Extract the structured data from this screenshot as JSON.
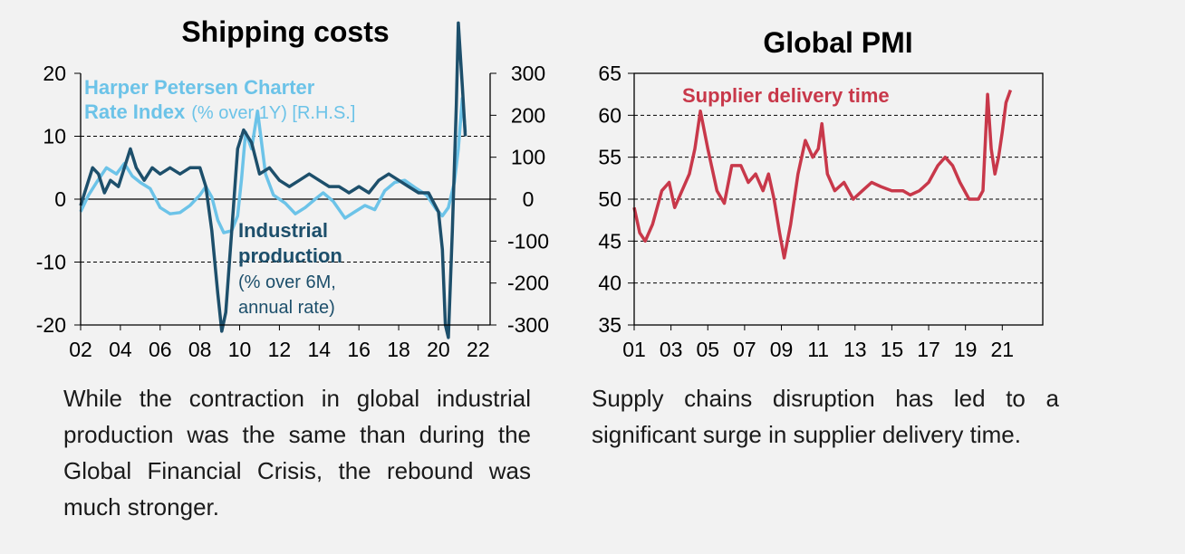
{
  "chart_data": [
    {
      "type": "line",
      "title": "Shipping costs",
      "x_ticks": [
        "02",
        "04",
        "06",
        "08",
        "10",
        "12",
        "14",
        "16",
        "18",
        "20",
        "22"
      ],
      "x_range": [
        2002,
        2022.6
      ],
      "y_left": {
        "range": [
          -20,
          20
        ],
        "ticks": [
          "20",
          "10",
          "0",
          "-10",
          "-20"
        ],
        "tick_values": [
          20,
          10,
          0,
          -10,
          -20
        ]
      },
      "y_right": {
        "range": [
          -300,
          300
        ],
        "ticks": [
          "300",
          "200",
          "100",
          "0",
          "-100",
          "-200",
          "-300"
        ],
        "tick_values": [
          300,
          200,
          100,
          0,
          -100,
          -200,
          -300
        ]
      },
      "gridlines": [
        10,
        0,
        -10
      ],
      "series": [
        {
          "name": "Harper Petersen Charter Rate Index",
          "axis": "right",
          "color": "#6cc3e8",
          "label_bold": "Harper Petersen Charter Rate Index",
          "label_bold_lines": [
            "Harper Petersen Charter",
            "Rate Index"
          ],
          "label_normal": "(% over 1Y) [R.H.S.]",
          "points": [
            [
              2002,
              -30
            ],
            [
              2002.4,
              10
            ],
            [
              2002.8,
              40
            ],
            [
              2003.3,
              75
            ],
            [
              2003.8,
              60
            ],
            [
              2004.2,
              85
            ],
            [
              2004.6,
              55
            ],
            [
              2005,
              40
            ],
            [
              2005.5,
              25
            ],
            [
              2006,
              -20
            ],
            [
              2006.5,
              -35
            ],
            [
              2007,
              -32
            ],
            [
              2007.5,
              -15
            ],
            [
              2008,
              10
            ],
            [
              2008.3,
              30
            ],
            [
              2008.6,
              5
            ],
            [
              2008.9,
              -50
            ],
            [
              2009.2,
              -80
            ],
            [
              2009.6,
              -75
            ],
            [
              2009.9,
              -40
            ],
            [
              2010.1,
              50
            ],
            [
              2010.3,
              160
            ],
            [
              2010.6,
              120
            ],
            [
              2010.9,
              210
            ],
            [
              2011.3,
              60
            ],
            [
              2011.7,
              10
            ],
            [
              2012.3,
              -10
            ],
            [
              2012.8,
              -35
            ],
            [
              2013.3,
              -20
            ],
            [
              2013.8,
              0
            ],
            [
              2014.2,
              15
            ],
            [
              2014.7,
              -5
            ],
            [
              2015.3,
              -45
            ],
            [
              2015.8,
              -30
            ],
            [
              2016.3,
              -15
            ],
            [
              2016.8,
              -25
            ],
            [
              2017.3,
              20
            ],
            [
              2017.8,
              40
            ],
            [
              2018.3,
              45
            ],
            [
              2018.9,
              25
            ],
            [
              2019.4,
              10
            ],
            [
              2019.9,
              -25
            ],
            [
              2020.2,
              -40
            ],
            [
              2020.5,
              -20
            ],
            [
              2020.8,
              40
            ],
            [
              2021,
              120
            ],
            [
              2021.2,
              240
            ],
            [
              2021.35,
              160
            ]
          ]
        },
        {
          "name": "Industrial production",
          "axis": "left",
          "color": "#1d4f6b",
          "label_bold": "Industrial production",
          "label_bold_lines": [
            "Industrial",
            "production"
          ],
          "label_normal": "(% over 6M, annual rate)",
          "label_normal_lines": [
            "(% over 6M,",
            "annual rate)"
          ],
          "points": [
            [
              2002,
              -1
            ],
            [
              2002.3,
              2
            ],
            [
              2002.6,
              5
            ],
            [
              2002.9,
              4
            ],
            [
              2003.2,
              1
            ],
            [
              2003.5,
              3
            ],
            [
              2003.9,
              2
            ],
            [
              2004.2,
              5
            ],
            [
              2004.5,
              8
            ],
            [
              2004.8,
              5
            ],
            [
              2005.2,
              3
            ],
            [
              2005.6,
              5
            ],
            [
              2006,
              4
            ],
            [
              2006.5,
              5
            ],
            [
              2007,
              4
            ],
            [
              2007.5,
              5
            ],
            [
              2008,
              5
            ],
            [
              2008.3,
              2
            ],
            [
              2008.6,
              -5
            ],
            [
              2008.9,
              -15
            ],
            [
              2009.1,
              -21
            ],
            [
              2009.3,
              -18
            ],
            [
              2009.6,
              -5
            ],
            [
              2009.9,
              8
            ],
            [
              2010.2,
              11
            ],
            [
              2010.6,
              9
            ],
            [
              2011,
              4
            ],
            [
              2011.5,
              5
            ],
            [
              2012,
              3
            ],
            [
              2012.5,
              2
            ],
            [
              2013,
              3
            ],
            [
              2013.5,
              4
            ],
            [
              2014,
              3
            ],
            [
              2014.5,
              2
            ],
            [
              2015,
              2
            ],
            [
              2015.5,
              1
            ],
            [
              2016,
              2
            ],
            [
              2016.5,
              1
            ],
            [
              2017,
              3
            ],
            [
              2017.5,
              4
            ],
            [
              2018,
              3
            ],
            [
              2018.5,
              2
            ],
            [
              2019,
              1
            ],
            [
              2019.5,
              1
            ],
            [
              2020,
              -2
            ],
            [
              2020.2,
              -8
            ],
            [
              2020.35,
              -20
            ],
            [
              2020.5,
              -22
            ],
            [
              2020.7,
              -5
            ],
            [
              2020.9,
              15
            ],
            [
              2021,
              28
            ],
            [
              2021.2,
              18
            ],
            [
              2021.35,
              10
            ]
          ]
        }
      ]
    },
    {
      "type": "line",
      "title": "Global PMI",
      "x_ticks": [
        "01",
        "03",
        "05",
        "07",
        "09",
        "11",
        "13",
        "15",
        "17",
        "19",
        "21"
      ],
      "x_range": [
        2001,
        2023.2
      ],
      "y_range": [
        35,
        65
      ],
      "y_ticks": [
        "65",
        "60",
        "55",
        "50",
        "45",
        "40",
        "35"
      ],
      "y_tick_values": [
        65,
        60,
        55,
        50,
        45,
        40,
        35
      ],
      "gridlines": [
        60,
        55,
        50,
        45,
        40
      ],
      "series": [
        {
          "name": "Supplier delivery time",
          "color": "#c8384a",
          "label": "Supplier delivery time",
          "points": [
            [
              2001,
              49
            ],
            [
              2001.3,
              46
            ],
            [
              2001.6,
              45
            ],
            [
              2002,
              47
            ],
            [
              2002.5,
              51
            ],
            [
              2002.9,
              52
            ],
            [
              2003.2,
              49
            ],
            [
              2003.6,
              51
            ],
            [
              2004,
              53
            ],
            [
              2004.3,
              56
            ],
            [
              2004.6,
              60.5
            ],
            [
              2005,
              56
            ],
            [
              2005.5,
              51
            ],
            [
              2005.9,
              49.5
            ],
            [
              2006.3,
              54
            ],
            [
              2006.8,
              54
            ],
            [
              2007.2,
              52
            ],
            [
              2007.6,
              53
            ],
            [
              2008,
              51
            ],
            [
              2008.3,
              53
            ],
            [
              2008.6,
              50
            ],
            [
              2008.9,
              46
            ],
            [
              2009.15,
              43
            ],
            [
              2009.5,
              47
            ],
            [
              2009.9,
              53
            ],
            [
              2010.3,
              57
            ],
            [
              2010.7,
              55
            ],
            [
              2011,
              56
            ],
            [
              2011.2,
              59
            ],
            [
              2011.5,
              53
            ],
            [
              2011.9,
              51
            ],
            [
              2012.4,
              52
            ],
            [
              2012.9,
              50
            ],
            [
              2013.4,
              51
            ],
            [
              2013.9,
              52
            ],
            [
              2014.4,
              51.5
            ],
            [
              2015,
              51
            ],
            [
              2015.6,
              51
            ],
            [
              2016,
              50.5
            ],
            [
              2016.5,
              51
            ],
            [
              2017,
              52
            ],
            [
              2017.5,
              54
            ],
            [
              2017.9,
              55
            ],
            [
              2018.3,
              54
            ],
            [
              2018.7,
              52
            ],
            [
              2019.2,
              50
            ],
            [
              2019.7,
              50
            ],
            [
              2019.95,
              51
            ],
            [
              2020.2,
              62.5
            ],
            [
              2020.4,
              56
            ],
            [
              2020.6,
              53
            ],
            [
              2020.8,
              55
            ],
            [
              2021,
              58
            ],
            [
              2021.2,
              61.5
            ],
            [
              2021.45,
              63
            ]
          ]
        }
      ]
    }
  ],
  "captions": {
    "left": "While the contraction in global industrial production was the same than during the Global Financial Crisis, the rebound was much stronger.",
    "right": "Supply chains disruption has led to a significant surge in supplier delivery time."
  }
}
